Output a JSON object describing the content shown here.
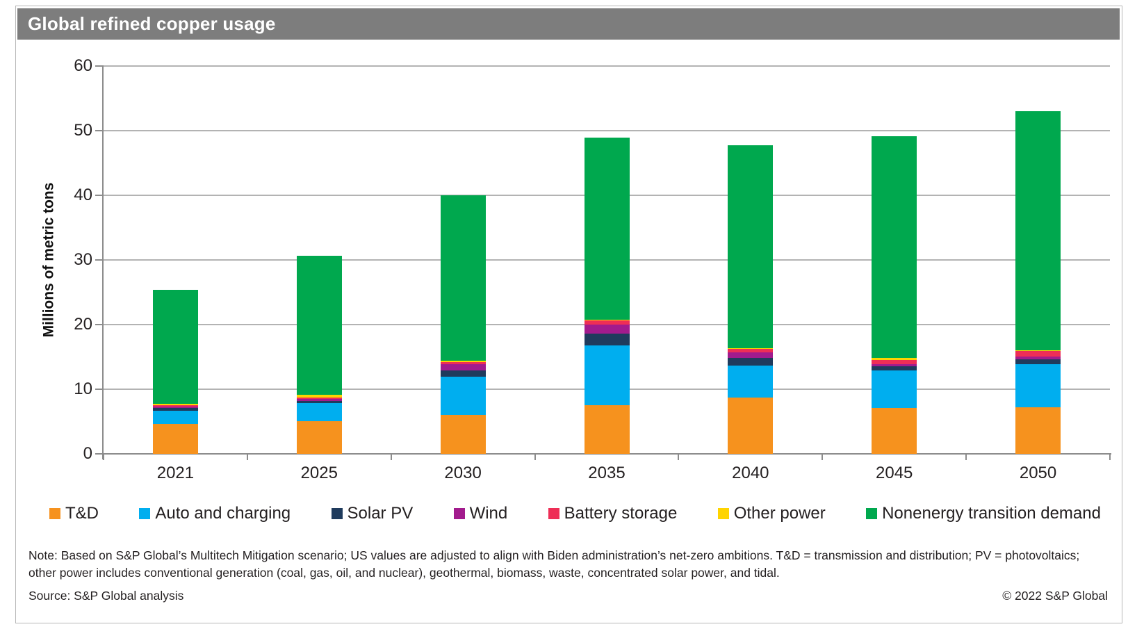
{
  "header": {
    "title": "Global refined copper usage"
  },
  "chart_data": {
    "type": "bar",
    "stacked": true,
    "title": "Global refined copper usage",
    "ylabel": "Millions of metric tons",
    "xlabel": "",
    "ylim": [
      0,
      60
    ],
    "yticks": [
      0,
      10,
      20,
      30,
      40,
      50,
      60
    ],
    "grid": true,
    "legend_position": "bottom",
    "categories": [
      "2021",
      "2025",
      "2030",
      "2035",
      "2040",
      "2045",
      "2050"
    ],
    "series": [
      {
        "name": "T&D",
        "color": "#F6921E",
        "values": [
          4.6,
          5.0,
          6.0,
          7.5,
          8.7,
          7.1,
          7.2
        ]
      },
      {
        "name": "Auto and charging",
        "color": "#00AEEF",
        "values": [
          2.1,
          2.8,
          5.9,
          9.3,
          5.0,
          5.8,
          6.7
        ]
      },
      {
        "name": "Solar PV",
        "color": "#1F3B5D",
        "values": [
          0.4,
          0.35,
          1.0,
          1.85,
          1.1,
          0.6,
          0.7
        ]
      },
      {
        "name": "Wind",
        "color": "#A21B8D",
        "values": [
          0.25,
          0.35,
          1.0,
          1.4,
          0.85,
          0.4,
          0.5
        ]
      },
      {
        "name": "Battery storage",
        "color": "#EE2E56",
        "values": [
          0.15,
          0.2,
          0.25,
          0.65,
          0.55,
          0.6,
          0.8
        ]
      },
      {
        "name": "Other power",
        "color": "#FFD400",
        "values": [
          0.3,
          0.4,
          0.25,
          0.1,
          0.1,
          0.3,
          0.1
        ]
      },
      {
        "name": "Nonenergy transition demand",
        "color": "#00A84E",
        "values": [
          17.6,
          21.6,
          25.6,
          28.1,
          31.5,
          34.3,
          37.0
        ]
      }
    ],
    "totals": [
      25.4,
      30.7,
      40.0,
      48.9,
      47.8,
      49.1,
      53.0
    ]
  },
  "footer": {
    "note": "Note: Based on S&P Global’s Multitech Mitigation scenario; US values are adjusted to align with Biden administration’s net-zero ambitions. T&D = transmission and distribution; PV = photovoltaics; other power includes conventional generation (coal, gas, oil, and nuclear), geothermal, biomass, waste, concentrated solar power, and tidal.",
    "source": "Source: S&P Global analysis",
    "copyright": "© 2022 S&P Global"
  }
}
